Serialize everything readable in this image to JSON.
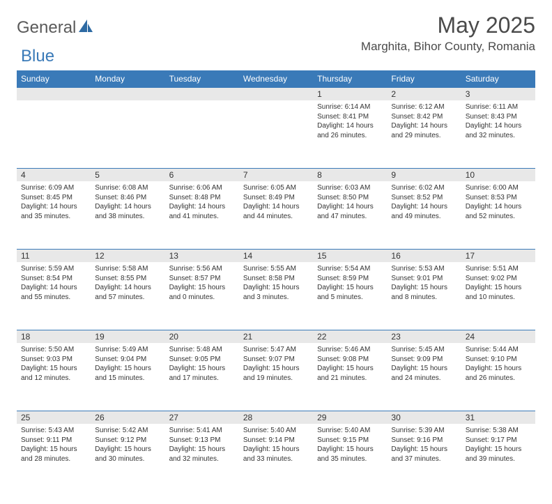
{
  "logo": {
    "general": "General",
    "blue": "Blue"
  },
  "title": "May 2025",
  "location": "Marghita, Bihor County, Romania",
  "day_headers": [
    "Sunday",
    "Monday",
    "Tuesday",
    "Wednesday",
    "Thursday",
    "Friday",
    "Saturday"
  ],
  "colors": {
    "header_bg": "#3a7ab8",
    "header_text": "#ffffff",
    "daynum_bg": "#e8e8e8",
    "border": "#3a7ab8",
    "text": "#333333",
    "logo_gray": "#5a5a5a",
    "logo_blue": "#3a7ab8"
  },
  "weeks": [
    [
      null,
      null,
      null,
      null,
      {
        "n": "1",
        "sunrise": "Sunrise: 6:14 AM",
        "sunset": "Sunset: 8:41 PM",
        "day": "Daylight: 14 hours and 26 minutes."
      },
      {
        "n": "2",
        "sunrise": "Sunrise: 6:12 AM",
        "sunset": "Sunset: 8:42 PM",
        "day": "Daylight: 14 hours and 29 minutes."
      },
      {
        "n": "3",
        "sunrise": "Sunrise: 6:11 AM",
        "sunset": "Sunset: 8:43 PM",
        "day": "Daylight: 14 hours and 32 minutes."
      }
    ],
    [
      {
        "n": "4",
        "sunrise": "Sunrise: 6:09 AM",
        "sunset": "Sunset: 8:45 PM",
        "day": "Daylight: 14 hours and 35 minutes."
      },
      {
        "n": "5",
        "sunrise": "Sunrise: 6:08 AM",
        "sunset": "Sunset: 8:46 PM",
        "day": "Daylight: 14 hours and 38 minutes."
      },
      {
        "n": "6",
        "sunrise": "Sunrise: 6:06 AM",
        "sunset": "Sunset: 8:48 PM",
        "day": "Daylight: 14 hours and 41 minutes."
      },
      {
        "n": "7",
        "sunrise": "Sunrise: 6:05 AM",
        "sunset": "Sunset: 8:49 PM",
        "day": "Daylight: 14 hours and 44 minutes."
      },
      {
        "n": "8",
        "sunrise": "Sunrise: 6:03 AM",
        "sunset": "Sunset: 8:50 PM",
        "day": "Daylight: 14 hours and 47 minutes."
      },
      {
        "n": "9",
        "sunrise": "Sunrise: 6:02 AM",
        "sunset": "Sunset: 8:52 PM",
        "day": "Daylight: 14 hours and 49 minutes."
      },
      {
        "n": "10",
        "sunrise": "Sunrise: 6:00 AM",
        "sunset": "Sunset: 8:53 PM",
        "day": "Daylight: 14 hours and 52 minutes."
      }
    ],
    [
      {
        "n": "11",
        "sunrise": "Sunrise: 5:59 AM",
        "sunset": "Sunset: 8:54 PM",
        "day": "Daylight: 14 hours and 55 minutes."
      },
      {
        "n": "12",
        "sunrise": "Sunrise: 5:58 AM",
        "sunset": "Sunset: 8:55 PM",
        "day": "Daylight: 14 hours and 57 minutes."
      },
      {
        "n": "13",
        "sunrise": "Sunrise: 5:56 AM",
        "sunset": "Sunset: 8:57 PM",
        "day": "Daylight: 15 hours and 0 minutes."
      },
      {
        "n": "14",
        "sunrise": "Sunrise: 5:55 AM",
        "sunset": "Sunset: 8:58 PM",
        "day": "Daylight: 15 hours and 3 minutes."
      },
      {
        "n": "15",
        "sunrise": "Sunrise: 5:54 AM",
        "sunset": "Sunset: 8:59 PM",
        "day": "Daylight: 15 hours and 5 minutes."
      },
      {
        "n": "16",
        "sunrise": "Sunrise: 5:53 AM",
        "sunset": "Sunset: 9:01 PM",
        "day": "Daylight: 15 hours and 8 minutes."
      },
      {
        "n": "17",
        "sunrise": "Sunrise: 5:51 AM",
        "sunset": "Sunset: 9:02 PM",
        "day": "Daylight: 15 hours and 10 minutes."
      }
    ],
    [
      {
        "n": "18",
        "sunrise": "Sunrise: 5:50 AM",
        "sunset": "Sunset: 9:03 PM",
        "day": "Daylight: 15 hours and 12 minutes."
      },
      {
        "n": "19",
        "sunrise": "Sunrise: 5:49 AM",
        "sunset": "Sunset: 9:04 PM",
        "day": "Daylight: 15 hours and 15 minutes."
      },
      {
        "n": "20",
        "sunrise": "Sunrise: 5:48 AM",
        "sunset": "Sunset: 9:05 PM",
        "day": "Daylight: 15 hours and 17 minutes."
      },
      {
        "n": "21",
        "sunrise": "Sunrise: 5:47 AM",
        "sunset": "Sunset: 9:07 PM",
        "day": "Daylight: 15 hours and 19 minutes."
      },
      {
        "n": "22",
        "sunrise": "Sunrise: 5:46 AM",
        "sunset": "Sunset: 9:08 PM",
        "day": "Daylight: 15 hours and 21 minutes."
      },
      {
        "n": "23",
        "sunrise": "Sunrise: 5:45 AM",
        "sunset": "Sunset: 9:09 PM",
        "day": "Daylight: 15 hours and 24 minutes."
      },
      {
        "n": "24",
        "sunrise": "Sunrise: 5:44 AM",
        "sunset": "Sunset: 9:10 PM",
        "day": "Daylight: 15 hours and 26 minutes."
      }
    ],
    [
      {
        "n": "25",
        "sunrise": "Sunrise: 5:43 AM",
        "sunset": "Sunset: 9:11 PM",
        "day": "Daylight: 15 hours and 28 minutes."
      },
      {
        "n": "26",
        "sunrise": "Sunrise: 5:42 AM",
        "sunset": "Sunset: 9:12 PM",
        "day": "Daylight: 15 hours and 30 minutes."
      },
      {
        "n": "27",
        "sunrise": "Sunrise: 5:41 AM",
        "sunset": "Sunset: 9:13 PM",
        "day": "Daylight: 15 hours and 32 minutes."
      },
      {
        "n": "28",
        "sunrise": "Sunrise: 5:40 AM",
        "sunset": "Sunset: 9:14 PM",
        "day": "Daylight: 15 hours and 33 minutes."
      },
      {
        "n": "29",
        "sunrise": "Sunrise: 5:40 AM",
        "sunset": "Sunset: 9:15 PM",
        "day": "Daylight: 15 hours and 35 minutes."
      },
      {
        "n": "30",
        "sunrise": "Sunrise: 5:39 AM",
        "sunset": "Sunset: 9:16 PM",
        "day": "Daylight: 15 hours and 37 minutes."
      },
      {
        "n": "31",
        "sunrise": "Sunrise: 5:38 AM",
        "sunset": "Sunset: 9:17 PM",
        "day": "Daylight: 15 hours and 39 minutes."
      }
    ]
  ]
}
